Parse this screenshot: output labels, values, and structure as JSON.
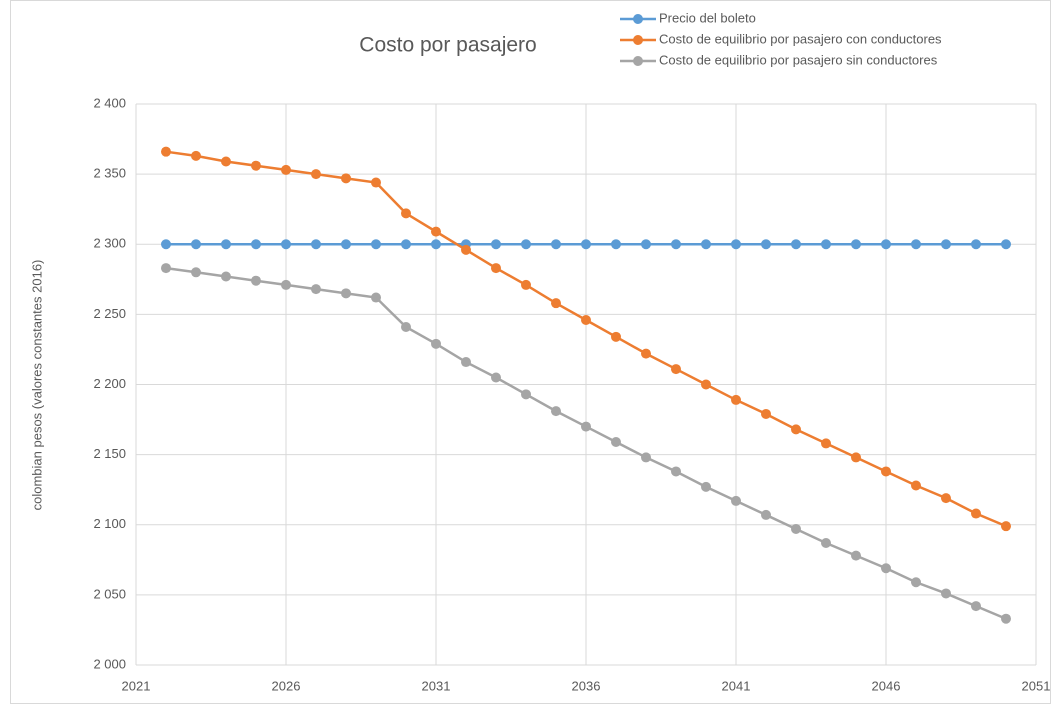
{
  "chart_data": {
    "type": "line",
    "title": "Costo por pasajero",
    "y_label": "colombian pesos (valores constantes 2016)",
    "x": [
      2022,
      2023,
      2024,
      2025,
      2026,
      2027,
      2028,
      2029,
      2030,
      2031,
      2032,
      2033,
      2034,
      2035,
      2036,
      2037,
      2038,
      2039,
      2040,
      2041,
      2042,
      2043,
      2044,
      2045,
      2046,
      2047,
      2048,
      2049,
      2050
    ],
    "series": [
      {
        "name": "Precio del boleto",
        "color": "#5b9bd5",
        "values": [
          2300,
          2300,
          2300,
          2300,
          2300,
          2300,
          2300,
          2300,
          2300,
          2300,
          2300,
          2300,
          2300,
          2300,
          2300,
          2300,
          2300,
          2300,
          2300,
          2300,
          2300,
          2300,
          2300,
          2300,
          2300,
          2300,
          2300,
          2300,
          2300
        ]
      },
      {
        "name": "Costo de equilibrio por pasajero con conductores",
        "color": "#ed7d31",
        "values": [
          2366,
          2363,
          2359,
          2356,
          2353,
          2350,
          2347,
          2344,
          2322,
          2309,
          2296,
          2283,
          2271,
          2258,
          2246,
          2234,
          2222,
          2211,
          2200,
          2189,
          2179,
          2168,
          2158,
          2148,
          2138,
          2128,
          2119,
          2108,
          2099
        ]
      },
      {
        "name": "Costo de equilibrio por pasajero sin conductores",
        "color": "#a5a5a5",
        "values": [
          2283,
          2280,
          2277,
          2274,
          2271,
          2268,
          2265,
          2262,
          2241,
          2229,
          2216,
          2205,
          2193,
          2181,
          2170,
          2159,
          2148,
          2138,
          2127,
          2117,
          2107,
          2097,
          2087,
          2078,
          2069,
          2059,
          2051,
          2042,
          2033
        ]
      }
    ],
    "xlim": [
      2021,
      2051
    ],
    "xticks": [
      2021,
      2026,
      2031,
      2036,
      2041,
      2046,
      2051
    ],
    "ylim": [
      2000,
      2400
    ],
    "yticks": [
      {
        "value": 2000,
        "label": "2 000"
      },
      {
        "value": 2050,
        "label": "2 050"
      },
      {
        "value": 2100,
        "label": "2 100"
      },
      {
        "value": 2150,
        "label": "2 150"
      },
      {
        "value": 2200,
        "label": "2 200"
      },
      {
        "value": 2250,
        "label": "2 250"
      },
      {
        "value": 2300,
        "label": "2 300"
      },
      {
        "value": 2350,
        "label": "2 350"
      },
      {
        "value": 2400,
        "label": "2 400"
      }
    ],
    "grid": true
  }
}
